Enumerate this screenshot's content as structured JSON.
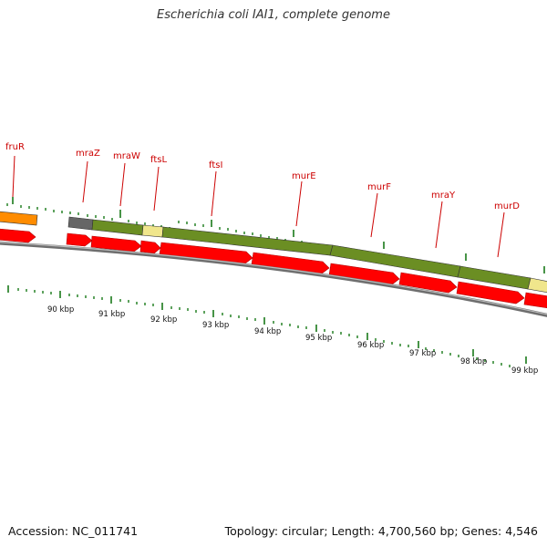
{
  "title": "Escherichia coli IAI1, complete genome",
  "footer": {
    "accession": "Accession: NC_011741",
    "summary": "Topology: circular; Length: 4,700,560 bp; Genes: 4,546"
  },
  "colors": {
    "background": "#ffffff",
    "gene_label": "#cc0000",
    "tick": "#1a7a1a",
    "cds_arrow": "#ff0000",
    "backbone": "#888888",
    "feature_orange": "#ff8c00",
    "feature_gray": "#666666",
    "feature_green": "#6b8e23",
    "feature_pale": "#f0e68c"
  },
  "gene_labels": [
    "fruR",
    "mraZ",
    "mraW",
    "ftsL",
    "ftsI",
    "murE",
    "murF",
    "mraY",
    "murD"
  ],
  "scale": {
    "unit": "kbp",
    "labels": [
      "90 kbp",
      "91 kbp",
      "92 kbp",
      "93 kbp",
      "94 kbp",
      "95 kbp",
      "96 kbp",
      "97 kbp",
      "98 kbp",
      "99 kbp"
    ]
  },
  "feature_bar": [
    {
      "color": "feature_orange"
    },
    {
      "color": "feature_gray"
    },
    {
      "color": "feature_green"
    },
    {
      "color": "feature_pale"
    },
    {
      "color": "feature_green"
    },
    {
      "color": "feature_green"
    },
    {
      "color": "feature_pale"
    }
  ],
  "cds_arrow_count": 12
}
